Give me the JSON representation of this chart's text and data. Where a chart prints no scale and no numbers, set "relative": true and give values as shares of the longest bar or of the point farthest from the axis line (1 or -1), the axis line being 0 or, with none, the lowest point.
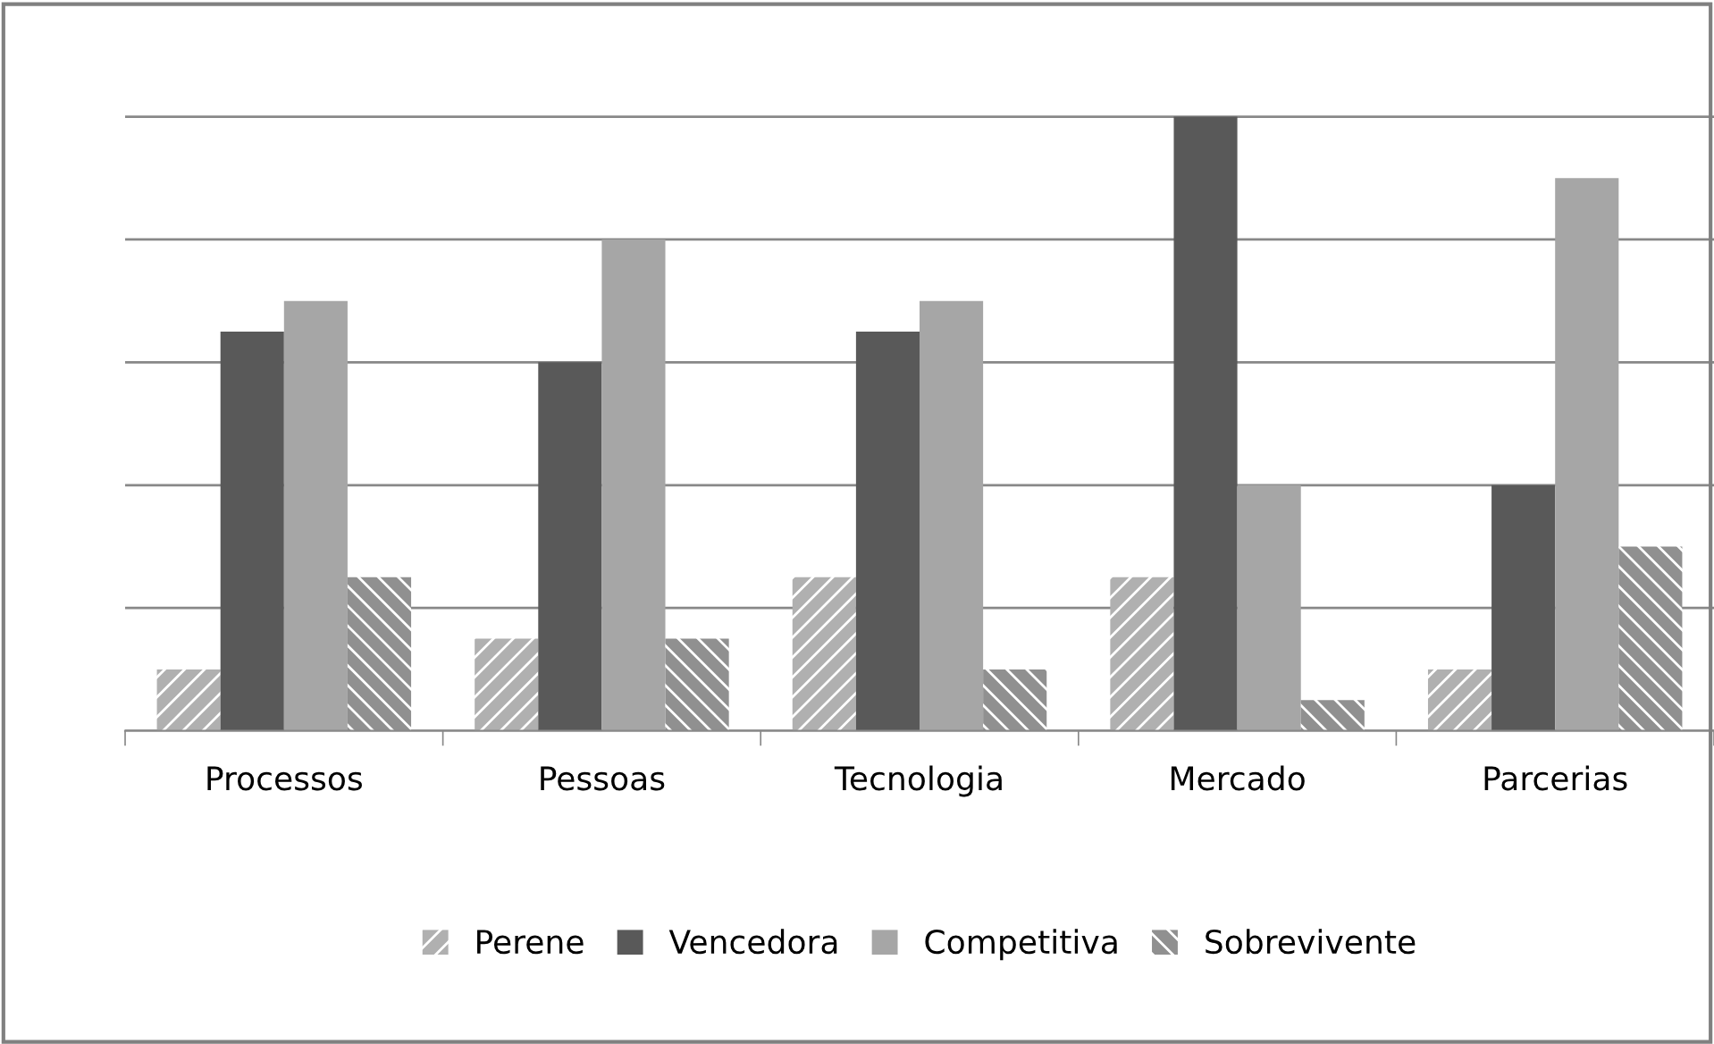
{
  "chart_data": {
    "type": "bar",
    "relative": true,
    "categories": [
      "Processos",
      "Pessoas",
      "Tecnologia",
      "Mercado",
      "Parcerias"
    ],
    "series": [
      {
        "name": "Perene",
        "color": "#b0b0b0",
        "values": [
          0.1,
          0.15,
          0.25,
          0.25,
          0.1
        ]
      },
      {
        "name": "Vencedora",
        "color": "#595959",
        "values": [
          0.65,
          0.6,
          0.65,
          1.0,
          0.4
        ]
      },
      {
        "name": "Competitiva",
        "color": "#a6a6a6",
        "values": [
          0.7,
          0.8,
          0.7,
          0.4,
          0.9
        ]
      },
      {
        "name": "Sobrevivente",
        "color": "#909090",
        "values": [
          0.25,
          0.15,
          0.1,
          0.05,
          0.3
        ]
      }
    ],
    "grid": "y",
    "legend": "bottom"
  }
}
